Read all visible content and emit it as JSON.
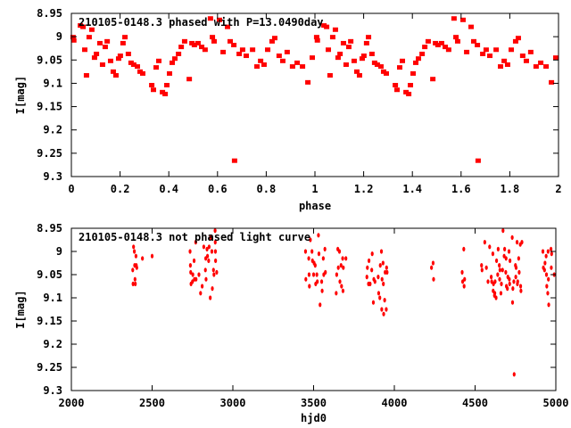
{
  "chart_data": [
    {
      "type": "scatter",
      "title": "210105-0148.3 phased with P=13.0490day",
      "xlabel": "phase",
      "ylabel": "I[mag]",
      "xlim": [
        0,
        2
      ],
      "ylim": [
        8.95,
        9.3
      ],
      "y_inverted": true,
      "grid": false,
      "x_ticks": [
        "0",
        "0.2",
        "0.4",
        "0.6",
        "0.8",
        "1",
        "1.2",
        "1.4",
        "1.6",
        "1.8",
        "2"
      ],
      "x_tick_values": [
        0,
        0.2,
        0.4,
        0.6,
        0.8,
        1,
        1.2,
        1.4,
        1.6,
        1.8,
        2
      ],
      "y_ticks": [
        "8.95",
        "9",
        "9.05",
        "9.1",
        "9.15",
        "9.2",
        "9.25",
        "9.3"
      ],
      "y_tick_values": [
        8.95,
        9.0,
        9.05,
        9.1,
        9.15,
        9.2,
        9.25,
        9.3
      ],
      "color": "#ff0000",
      "repeat_period": 1,
      "points": [
        [
          0.007,
          9.0
        ],
        [
          0.01,
          9.007
        ],
        [
          0.037,
          8.975
        ],
        [
          0.048,
          8.978
        ],
        [
          0.055,
          9.027
        ],
        [
          0.062,
          9.082
        ],
        [
          0.073,
          9.0
        ],
        [
          0.084,
          8.984
        ],
        [
          0.095,
          9.044
        ],
        [
          0.103,
          9.036
        ],
        [
          0.117,
          9.013
        ],
        [
          0.128,
          9.059
        ],
        [
          0.139,
          9.021
        ],
        [
          0.147,
          9.009
        ],
        [
          0.161,
          9.051
        ],
        [
          0.172,
          9.074
        ],
        [
          0.183,
          9.082
        ],
        [
          0.194,
          9.046
        ],
        [
          0.201,
          9.04
        ],
        [
          0.212,
          9.013
        ],
        [
          0.22,
          9.0
        ],
        [
          0.234,
          9.036
        ],
        [
          0.245,
          9.055
        ],
        [
          0.256,
          9.059
        ],
        [
          0.271,
          9.063
        ],
        [
          0.282,
          9.074
        ],
        [
          0.293,
          9.078
        ],
        [
          0.33,
          9.103
        ],
        [
          0.337,
          9.113
        ],
        [
          0.348,
          9.065
        ],
        [
          0.359,
          9.051
        ],
        [
          0.374,
          9.118
        ],
        [
          0.385,
          9.122
        ],
        [
          0.392,
          9.103
        ],
        [
          0.403,
          9.078
        ],
        [
          0.414,
          9.055
        ],
        [
          0.425,
          9.046
        ],
        [
          0.44,
          9.036
        ],
        [
          0.451,
          9.021
        ],
        [
          0.465,
          9.009
        ],
        [
          0.484,
          9.09
        ],
        [
          0.495,
          9.013
        ],
        [
          0.505,
          9.017
        ],
        [
          0.52,
          9.013
        ],
        [
          0.535,
          9.021
        ],
        [
          0.549,
          9.027
        ],
        [
          0.571,
          8.96
        ],
        [
          0.579,
          9.0
        ],
        [
          0.586,
          9.009
        ],
        [
          0.608,
          8.963
        ],
        [
          0.623,
          9.032
        ],
        [
          0.641,
          8.978
        ],
        [
          0.652,
          9.009
        ],
        [
          0.667,
          9.017
        ],
        [
          0.67,
          9.265
        ],
        [
          0.689,
          9.036
        ],
        [
          0.703,
          9.027
        ],
        [
          0.718,
          9.04
        ],
        [
          0.744,
          9.027
        ],
        [
          0.762,
          9.063
        ],
        [
          0.777,
          9.051
        ],
        [
          0.791,
          9.059
        ],
        [
          0.806,
          9.027
        ],
        [
          0.824,
          9.009
        ],
        [
          0.835,
          9.002
        ],
        [
          0.853,
          9.04
        ],
        [
          0.868,
          9.051
        ],
        [
          0.886,
          9.032
        ],
        [
          0.908,
          9.063
        ],
        [
          0.927,
          9.055
        ],
        [
          0.949,
          9.063
        ],
        [
          0.971,
          9.097
        ],
        [
          0.989,
          9.044
        ]
      ]
    },
    {
      "type": "scatter",
      "title": "210105-0148.3 not phased light curve",
      "xlabel": "hjd0",
      "ylabel": "I[mag]",
      "xlim": [
        2000,
        5000
      ],
      "ylim": [
        8.95,
        9.3
      ],
      "y_inverted": true,
      "grid": false,
      "x_ticks": [
        "2000",
        "2500",
        "3000",
        "3500",
        "4000",
        "4500",
        "5000"
      ],
      "x_tick_values": [
        2000,
        2500,
        3000,
        3500,
        4000,
        4500,
        5000
      ],
      "y_ticks": [
        "8.95",
        "9",
        "9.05",
        "9.1",
        "9.15",
        "9.2",
        "9.25",
        "9.3"
      ],
      "y_tick_values": [
        8.95,
        9.0,
        9.05,
        9.1,
        9.15,
        9.2,
        9.25,
        9.3
      ],
      "color": "#ff0000",
      "points": [
        [
          2380,
          9.04
        ],
        [
          2382,
          9.07
        ],
        [
          2385,
          8.99
        ],
        [
          2390,
          9.0
        ],
        [
          2392,
          9.03
        ],
        [
          2394,
          9.06
        ],
        [
          2396,
          9.07
        ],
        [
          2400,
          9.01
        ],
        [
          2402,
          9.03
        ],
        [
          2405,
          9.035
        ],
        [
          2440,
          9.015
        ],
        [
          2500,
          9.01
        ],
        [
          2735,
          9.0
        ],
        [
          2737,
          9.03
        ],
        [
          2739,
          9.045
        ],
        [
          2741,
          9.07
        ],
        [
          2750,
          9.065
        ],
        [
          2752,
          9.05
        ],
        [
          2760,
          9.02
        ],
        [
          2762,
          9.06
        ],
        [
          2770,
          8.98
        ],
        [
          2772,
          9.06
        ],
        [
          2790,
          9.05
        ],
        [
          2800,
          9.09
        ],
        [
          2810,
          9.075
        ],
        [
          2820,
          8.99
        ],
        [
          2830,
          9.04
        ],
        [
          2832,
          9.015
        ],
        [
          2834,
          9.06
        ],
        [
          2840,
          8.995
        ],
        [
          2843,
          9.01
        ],
        [
          2850,
          9.02
        ],
        [
          2853,
          8.99
        ],
        [
          2860,
          9.1
        ],
        [
          2862,
          8.97
        ],
        [
          2870,
          9.0
        ],
        [
          2873,
          9.08
        ],
        [
          2880,
          9.04
        ],
        [
          2883,
          9.05
        ],
        [
          2890,
          8.955
        ],
        [
          2891,
          8.98
        ],
        [
          2892,
          9.0
        ],
        [
          2893,
          9.02
        ],
        [
          2900,
          9.045
        ],
        [
          3450,
          9.0
        ],
        [
          3452,
          9.06
        ],
        [
          3470,
          9.015
        ],
        [
          3472,
          9.05
        ],
        [
          3474,
          9.075
        ],
        [
          3480,
          8.975
        ],
        [
          3490,
          9.0
        ],
        [
          3493,
          9.02
        ],
        [
          3500,
          9.05
        ],
        [
          3503,
          9.025
        ],
        [
          3510,
          9.03
        ],
        [
          3513,
          9.07
        ],
        [
          3520,
          9.05
        ],
        [
          3523,
          9.065
        ],
        [
          3530,
          8.965
        ],
        [
          3533,
          9.005
        ],
        [
          3540,
          9.115
        ],
        [
          3550,
          9.065
        ],
        [
          3553,
          9.085
        ],
        [
          3560,
          9.015
        ],
        [
          3563,
          9.05
        ],
        [
          3570,
          8.995
        ],
        [
          3573,
          9.045
        ],
        [
          3640,
          9.09
        ],
        [
          3643,
          9.05
        ],
        [
          3650,
          8.995
        ],
        [
          3653,
          9.035
        ],
        [
          3660,
          9.0
        ],
        [
          3663,
          9.065
        ],
        [
          3670,
          9.03
        ],
        [
          3673,
          9.075
        ],
        [
          3680,
          9.015
        ],
        [
          3682,
          9.085
        ],
        [
          3684,
          9.035
        ],
        [
          3700,
          9.015
        ],
        [
          3830,
          9.055
        ],
        [
          3833,
          9.035
        ],
        [
          3840,
          9.07
        ],
        [
          3843,
          9.02
        ],
        [
          3850,
          9.07
        ],
        [
          3860,
          9.04
        ],
        [
          3863,
          9.005
        ],
        [
          3870,
          9.11
        ],
        [
          3873,
          9.06
        ],
        [
          3880,
          9.065
        ],
        [
          3900,
          9.055
        ],
        [
          3903,
          9.09
        ],
        [
          3910,
          9.1
        ],
        [
          3913,
          9.03
        ],
        [
          3920,
          9.0
        ],
        [
          3922,
          9.125
        ],
        [
          3924,
          9.06
        ],
        [
          3930,
          9.025
        ],
        [
          3932,
          9.07
        ],
        [
          3934,
          9.135
        ],
        [
          3940,
          9.105
        ],
        [
          3943,
          9.045
        ],
        [
          3950,
          9.125
        ],
        [
          3952,
          9.035
        ],
        [
          3955,
          9.045
        ],
        [
          4230,
          9.035
        ],
        [
          4240,
          9.025
        ],
        [
          4243,
          9.06
        ],
        [
          4420,
          9.045
        ],
        [
          4423,
          9.065
        ],
        [
          4430,
          8.995
        ],
        [
          4432,
          9.075
        ],
        [
          4435,
          9.06
        ],
        [
          4540,
          9.03
        ],
        [
          4543,
          9.04
        ],
        [
          4560,
          8.98
        ],
        [
          4570,
          9.035
        ],
        [
          4580,
          9.065
        ],
        [
          4590,
          8.99
        ],
        [
          4600,
          9.055
        ],
        [
          4603,
          9.065
        ],
        [
          4610,
          9.005
        ],
        [
          4612,
          9.085
        ],
        [
          4614,
          9.07
        ],
        [
          4620,
          9.095
        ],
        [
          4622,
          9.09
        ],
        [
          4624,
          9.065
        ],
        [
          4630,
          9.1
        ],
        [
          4633,
          9.02
        ],
        [
          4640,
          9.05
        ],
        [
          4643,
          8.995
        ],
        [
          4650,
          9.03
        ],
        [
          4652,
          9.06
        ],
        [
          4654,
          9.04
        ],
        [
          4660,
          9.09
        ],
        [
          4663,
          9.07
        ],
        [
          4670,
          9.04
        ],
        [
          4673,
          8.955
        ],
        [
          4680,
          9.01
        ],
        [
          4683,
          8.995
        ],
        [
          4690,
          9.045
        ],
        [
          4692,
          9.015
        ],
        [
          4694,
          9.075
        ],
        [
          4700,
          9.08
        ],
        [
          4703,
          9.055
        ],
        [
          4710,
          9.0
        ],
        [
          4712,
          9.06
        ],
        [
          4714,
          9.07
        ],
        [
          4716,
          9.02
        ],
        [
          4730,
          8.97
        ],
        [
          4732,
          9.11
        ],
        [
          4734,
          9.08
        ],
        [
          4740,
          9.065
        ],
        [
          4742,
          9.265
        ],
        [
          4750,
          9.03
        ],
        [
          4752,
          9.055
        ],
        [
          4754,
          9.035
        ],
        [
          4760,
          8.98
        ],
        [
          4762,
          9.07
        ],
        [
          4764,
          9.065
        ],
        [
          4770,
          9.015
        ],
        [
          4773,
          9.045
        ],
        [
          4780,
          8.985
        ],
        [
          4782,
          9.075
        ],
        [
          4784,
          9.085
        ],
        [
          4790,
          8.98
        ],
        [
          4920,
          9.0
        ],
        [
          4923,
          9.035
        ],
        [
          4930,
          9.04
        ],
        [
          4933,
          9.025
        ],
        [
          4940,
          9.01
        ],
        [
          4942,
          9.05
        ],
        [
          4944,
          9.075
        ],
        [
          4950,
          9.09
        ],
        [
          4952,
          9.0
        ],
        [
          4954,
          9.06
        ],
        [
          4956,
          9.115
        ],
        [
          4970,
          8.995
        ],
        [
          4972,
          9.035
        ],
        [
          4974,
          9.005
        ],
        [
          4990,
          9.05
        ]
      ]
    }
  ]
}
